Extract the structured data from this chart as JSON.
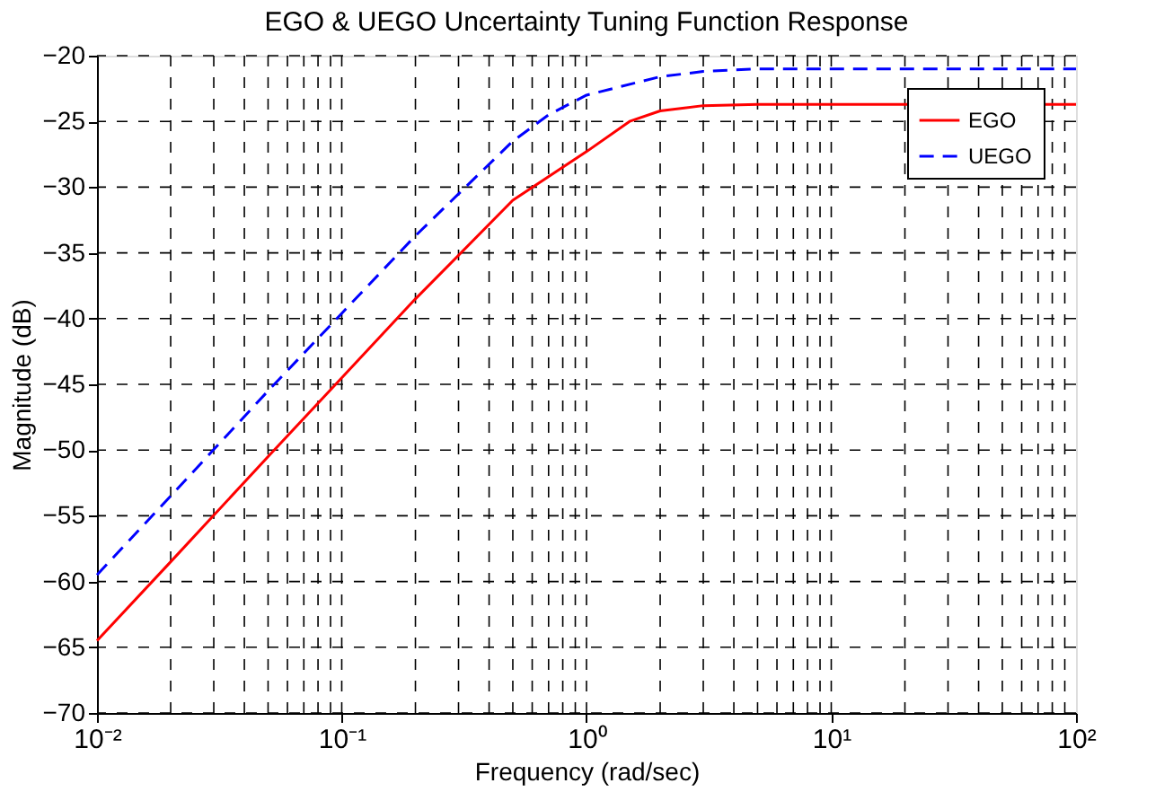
{
  "chart_data": {
    "type": "line",
    "title": "EGO & UEGO Uncertainty Tuning Function Response",
    "xlabel": "Frequency (rad/sec)",
    "ylabel": "Magnitude (dB)",
    "log": "x",
    "grid": true,
    "legend": "top right",
    "marker": "none",
    "xlim": [
      0.01,
      100
    ],
    "xticks": [
      {
        "value": 0.01,
        "label": "10⁻²"
      },
      {
        "value": 0.1,
        "label": "10⁻¹"
      },
      {
        "value": 1,
        "label": "10⁰"
      },
      {
        "value": 10,
        "label": "10¹"
      },
      {
        "value": 100,
        "label": "10²"
      }
    ],
    "ylim": [
      -70,
      -20
    ],
    "yticks": [
      -70,
      -65,
      -60,
      -55,
      -50,
      -45,
      -40,
      -35,
      -30,
      -25,
      -20
    ],
    "series": [
      {
        "name": "EGO",
        "color": "#ff0000",
        "line_style": "solid",
        "x": [
          0.01,
          0.02,
          0.05,
          0.1,
          0.2,
          0.5,
          1,
          1.5,
          2,
          3,
          5,
          10,
          100
        ],
        "values": [
          -64.5,
          -58.5,
          -50.5,
          -44.5,
          -38.5,
          -31,
          -27.3,
          -25,
          -24.2,
          -23.8,
          -23.7,
          -23.7,
          -23.7
        ]
      },
      {
        "name": "UEGO",
        "color": "#0000ff",
        "line_style": "dashed",
        "x": [
          0.01,
          0.02,
          0.05,
          0.1,
          0.2,
          0.5,
          0.7,
          1,
          2,
          3,
          5,
          10,
          100
        ],
        "values": [
          -59.5,
          -53.5,
          -45.5,
          -39.6,
          -33.7,
          -26.5,
          -24.5,
          -23,
          -21.6,
          -21.2,
          -21,
          -21,
          -21
        ]
      }
    ]
  }
}
